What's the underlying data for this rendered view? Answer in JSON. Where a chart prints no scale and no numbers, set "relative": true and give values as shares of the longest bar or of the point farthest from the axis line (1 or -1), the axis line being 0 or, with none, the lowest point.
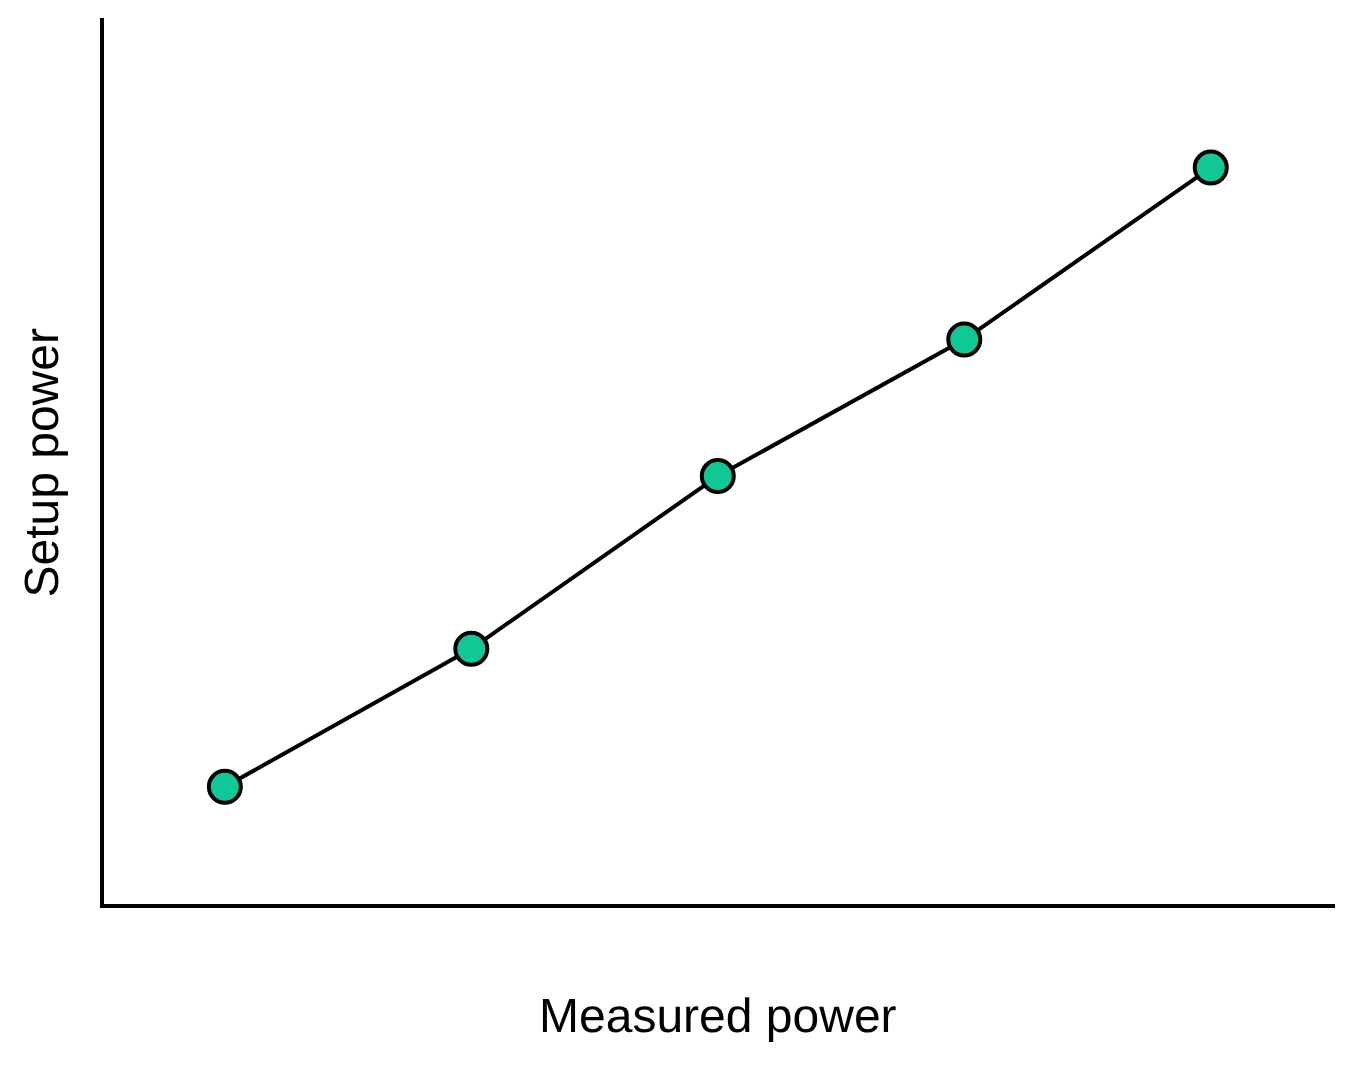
{
  "chart_data": {
    "type": "line",
    "xlabel": "Measured power",
    "ylabel": "Setup power",
    "relative": true,
    "categories": [
      null,
      null,
      null,
      null,
      null
    ],
    "series": [
      {
        "color": "#000000",
        "values": [
          0.161,
          0.348,
          0.582,
          0.767,
          1
        ]
      }
    ],
    "marker": "circle",
    "line_style": "solid",
    "grid": false,
    "legend": false
  }
}
